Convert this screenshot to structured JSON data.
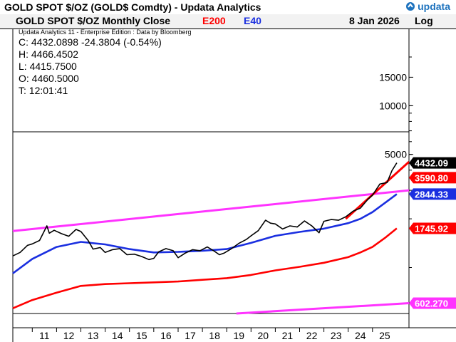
{
  "header": {
    "title": "GOLD SPOT $/OZ (GOLD$ Comdty) - Updata Analytics",
    "brand": "updata",
    "chart_title": "GOLD SPOT $/OZ Monthly Close",
    "legend": [
      {
        "label": "E200",
        "color": "#ff0000"
      },
      {
        "label": "E40",
        "color": "#1a2fe0"
      }
    ],
    "date": "8 Jan 2026",
    "scale": "Log"
  },
  "info": {
    "edition": "Updata Analytics 11 - Enterprise Edition : Data by Bloomberg",
    "close": "C: 4432.0898  -24.3804 (-0.54%)",
    "high": "H: 4466.4502",
    "low": "L: 4415.7500",
    "open": "O: 4460.5000",
    "time": "T: 12:01:41"
  },
  "chart_data": {
    "type": "line",
    "title": "GOLD SPOT $/OZ Monthly Close",
    "y_scale": "log",
    "ylim": [
      520,
      30000
    ],
    "xlim": [
      2010.2,
      2026.5
    ],
    "x_tick_labels": [
      "11",
      "12",
      "13",
      "14",
      "15",
      "16",
      "17",
      "18",
      "19",
      "20",
      "21",
      "22",
      "23",
      "24",
      "25"
    ],
    "y_ticks": [
      5000,
      10000,
      15000
    ],
    "y_tick_labels": [
      "5000",
      "10000",
      "15000"
    ],
    "series": [
      {
        "name": "GOLD SPOT $/OZ",
        "color": "#000000",
        "x": [
          2010.2,
          2010.5,
          2010.8,
          2011.0,
          2011.3,
          2011.6,
          2011.7,
          2011.9,
          2012.2,
          2012.5,
          2012.8,
          2013.0,
          2013.3,
          2013.5,
          2013.8,
          2014.0,
          2014.3,
          2014.6,
          2014.9,
          2015.2,
          2015.5,
          2015.8,
          2016.0,
          2016.2,
          2016.5,
          2016.8,
          2017.0,
          2017.3,
          2017.6,
          2017.9,
          2018.2,
          2018.5,
          2018.7,
          2018.9,
          2019.2,
          2019.5,
          2019.8,
          2020.0,
          2020.3,
          2020.6,
          2020.8,
          2021.0,
          2021.3,
          2021.6,
          2021.9,
          2022.2,
          2022.5,
          2022.8,
          2023.0,
          2023.3,
          2023.6,
          2023.9,
          2024.2,
          2024.5,
          2024.8,
          2025.0,
          2025.3,
          2025.6,
          2025.8,
          2026.0
        ],
        "values": [
          1180,
          1240,
          1370,
          1400,
          1470,
          1810,
          1630,
          1700,
          1620,
          1560,
          1720,
          1670,
          1470,
          1300,
          1330,
          1240,
          1290,
          1310,
          1200,
          1210,
          1170,
          1120,
          1140,
          1250,
          1310,
          1270,
          1150,
          1230,
          1290,
          1270,
          1340,
          1260,
          1200,
          1230,
          1310,
          1410,
          1490,
          1570,
          1690,
          1960,
          1880,
          1860,
          1730,
          1810,
          1780,
          1940,
          1810,
          1640,
          1930,
          1980,
          1960,
          2060,
          2230,
          2330,
          2630,
          2800,
          3280,
          3350,
          3970,
          4432
        ]
      },
      {
        "name": "E40",
        "color": "#1a2fe0",
        "x": [
          2010.2,
          2011.0,
          2012.0,
          2013.0,
          2014.0,
          2015.0,
          2016.0,
          2017.0,
          2018.0,
          2019.0,
          2020.0,
          2021.0,
          2022.0,
          2023.0,
          2024.0,
          2024.5,
          2025.0,
          2025.5,
          2026.0
        ],
        "values": [
          920,
          1130,
          1340,
          1440,
          1390,
          1300,
          1240,
          1250,
          1270,
          1300,
          1420,
          1570,
          1660,
          1740,
          1880,
          2000,
          2200,
          2500,
          2844.33
        ]
      },
      {
        "name": "E200",
        "color": "#ff0000",
        "x": [
          2010.2,
          2011.0,
          2012.0,
          2013.0,
          2014.0,
          2015.0,
          2016.0,
          2017.0,
          2018.0,
          2019.0,
          2020.0,
          2021.0,
          2022.0,
          2023.0,
          2024.0,
          2024.5,
          2025.0,
          2025.5,
          2026.0
        ],
        "values": [
          560,
          630,
          700,
          770,
          790,
          800,
          810,
          820,
          840,
          860,
          900,
          960,
          1010,
          1070,
          1160,
          1240,
          1340,
          1520,
          1745.92
        ]
      }
    ],
    "trendlines": [
      {
        "color": "#ff33ff",
        "x": [
          2010.2,
          2026.5
        ],
        "values": [
          1680,
          3000
        ],
        "label": "2844.33"
      },
      {
        "color": "#ff33ff",
        "x": [
          2019.4,
          2026.5
        ],
        "values": [
          520,
          602.27
        ],
        "label": "602.270"
      },
      {
        "color": "#ff0000",
        "x": [
          2023.9,
          2026.5
        ],
        "values": [
          2000,
          4500
        ],
        "label": "3590.80"
      }
    ],
    "price_labels": [
      {
        "text": "4432.09",
        "value": 4432.09,
        "bg": "#000000",
        "fg": "#ffffff"
      },
      {
        "text": "3590.80",
        "value": 3590.8,
        "bg": "#ff0000",
        "fg": "#ffffff"
      },
      {
        "text": "2844.33",
        "value": 2844.33,
        "bg": "#1a2fe0",
        "fg": "#ffffff"
      },
      {
        "text": "1745.92",
        "value": 1745.92,
        "bg": "#ff0000",
        "fg": "#ffffff"
      },
      {
        "text": "602.270",
        "value": 602.27,
        "bg": "#ff33ff",
        "fg": "#ffffff"
      }
    ]
  }
}
